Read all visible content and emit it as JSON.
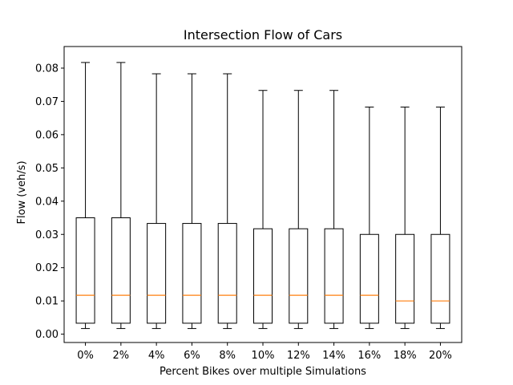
{
  "chart_data": {
    "type": "boxplot",
    "title": "Intersection Flow of Cars",
    "xlabel": "Percent Bikes over multiple Simulations",
    "ylabel": "Flow (veh/s)",
    "ylim": [
      -0.0025,
      0.0865
    ],
    "yticks": [
      "0.00",
      "0.01",
      "0.02",
      "0.03",
      "0.04",
      "0.05",
      "0.06",
      "0.07",
      "0.08"
    ],
    "categories": [
      "0%",
      "2%",
      "4%",
      "6%",
      "8%",
      "10%",
      "12%",
      "14%",
      "16%",
      "18%",
      "20%"
    ],
    "boxes": [
      {
        "whisker_low": 0.0017,
        "q1": 0.0033,
        "median": 0.0117,
        "q3": 0.035,
        "whisker_high": 0.0817
      },
      {
        "whisker_low": 0.0017,
        "q1": 0.0033,
        "median": 0.0117,
        "q3": 0.035,
        "whisker_high": 0.0817
      },
      {
        "whisker_low": 0.0017,
        "q1": 0.0033,
        "median": 0.0117,
        "q3": 0.0333,
        "whisker_high": 0.0783
      },
      {
        "whisker_low": 0.0017,
        "q1": 0.0033,
        "median": 0.0117,
        "q3": 0.0333,
        "whisker_high": 0.0783
      },
      {
        "whisker_low": 0.0017,
        "q1": 0.0033,
        "median": 0.0117,
        "q3": 0.0333,
        "whisker_high": 0.0783
      },
      {
        "whisker_low": 0.0017,
        "q1": 0.0033,
        "median": 0.0117,
        "q3": 0.0317,
        "whisker_high": 0.0733
      },
      {
        "whisker_low": 0.0017,
        "q1": 0.0033,
        "median": 0.0117,
        "q3": 0.0317,
        "whisker_high": 0.0733
      },
      {
        "whisker_low": 0.0017,
        "q1": 0.0033,
        "median": 0.0117,
        "q3": 0.0317,
        "whisker_high": 0.0733
      },
      {
        "whisker_low": 0.0017,
        "q1": 0.0033,
        "median": 0.0117,
        "q3": 0.03,
        "whisker_high": 0.0683
      },
      {
        "whisker_low": 0.0017,
        "q1": 0.0033,
        "median": 0.01,
        "q3": 0.03,
        "whisker_high": 0.0683
      },
      {
        "whisker_low": 0.0017,
        "q1": 0.0033,
        "median": 0.01,
        "q3": 0.03,
        "whisker_high": 0.0683
      }
    ],
    "colors": {
      "box": "#000000",
      "median": "#ff7f0e"
    },
    "grid": false,
    "legend": "none"
  }
}
